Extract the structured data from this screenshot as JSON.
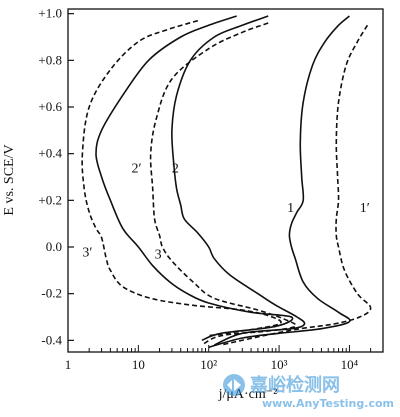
{
  "chart_data": {
    "type": "line",
    "title": "",
    "xlabel": "j/μA·cm⁻²",
    "ylabel": "E vs. SCE/V",
    "x_scale": "log",
    "xlim": [
      1,
      30000
    ],
    "ylim": [
      -0.45,
      1.02
    ],
    "x_ticks": [
      {
        "value": 1,
        "label": "1"
      },
      {
        "value": 10,
        "label": "10"
      },
      {
        "value": 100,
        "label": "10²"
      },
      {
        "value": 1000,
        "label": "10³"
      },
      {
        "value": 10000,
        "label": "10⁴"
      }
    ],
    "y_ticks": [
      {
        "value": 1.0,
        "label": "+1.0"
      },
      {
        "value": 0.8,
        "label": "+0.8"
      },
      {
        "value": 0.6,
        "label": "+0.6"
      },
      {
        "value": 0.4,
        "label": "+0.4"
      },
      {
        "value": 0.2,
        "label": "+0.2"
      },
      {
        "value": 0.0,
        "label": "0.0"
      },
      {
        "value": -0.2,
        "label": "-0.2"
      },
      {
        "value": -0.4,
        "label": "-0.4"
      }
    ],
    "grid": false,
    "series": [
      {
        "name": "1",
        "style": "solid",
        "label_pos": {
          "x": 1300,
          "y": 0.15
        },
        "points": [
          [
            10000,
            0.99
          ],
          [
            7000,
            0.95
          ],
          [
            4500,
            0.88
          ],
          [
            3000,
            0.78
          ],
          [
            2200,
            0.62
          ],
          [
            2000,
            0.45
          ],
          [
            2100,
            0.3
          ],
          [
            2200,
            0.2
          ],
          [
            1800,
            0.15
          ],
          [
            1500,
            0.1
          ],
          [
            1400,
            0.05
          ],
          [
            1500,
            0.0
          ],
          [
            1700,
            -0.05
          ],
          [
            2200,
            -0.15
          ],
          [
            3500,
            -0.22
          ],
          [
            7000,
            -0.28
          ],
          [
            10000,
            -0.32
          ],
          [
            4000,
            -0.35
          ],
          [
            1000,
            -0.37
          ],
          [
            300,
            -0.39
          ],
          [
            100,
            -0.43
          ]
        ]
      },
      {
        "name": "1′",
        "style": "dashed",
        "label_pos": {
          "x": 14000,
          "y": 0.15
        },
        "points": [
          [
            18000,
            0.95
          ],
          [
            13000,
            0.88
          ],
          [
            9000,
            0.78
          ],
          [
            7000,
            0.62
          ],
          [
            6500,
            0.45
          ],
          [
            6800,
            0.3
          ],
          [
            7000,
            0.2
          ],
          [
            6500,
            0.12
          ],
          [
            6500,
            0.05
          ],
          [
            7000,
            0.0
          ],
          [
            8500,
            -0.1
          ],
          [
            13000,
            -0.2
          ],
          [
            20000,
            -0.26
          ],
          [
            14000,
            -0.3
          ],
          [
            6000,
            -0.33
          ],
          [
            2000,
            -0.35
          ],
          [
            600,
            -0.38
          ],
          [
            150,
            -0.42
          ]
        ]
      },
      {
        "name": "2",
        "style": "solid",
        "label_pos": {
          "x": 30,
          "y": 0.32
        },
        "points": [
          [
            700,
            0.99
          ],
          [
            300,
            0.95
          ],
          [
            120,
            0.9
          ],
          [
            55,
            0.8
          ],
          [
            35,
            0.65
          ],
          [
            30,
            0.5
          ],
          [
            32,
            0.35
          ],
          [
            35,
            0.25
          ],
          [
            40,
            0.18
          ],
          [
            45,
            0.12
          ],
          [
            70,
            0.06
          ],
          [
            100,
            0.0
          ],
          [
            120,
            -0.05
          ],
          [
            200,
            -0.12
          ],
          [
            500,
            -0.2
          ],
          [
            900,
            -0.25
          ],
          [
            1800,
            -0.3
          ],
          [
            2300,
            -0.33
          ],
          [
            1500,
            -0.35
          ],
          [
            300,
            -0.37
          ],
          [
            120,
            -0.42
          ]
        ]
      },
      {
        "name": "2′",
        "style": "dashed",
        "label_pos": {
          "x": 8,
          "y": 0.32
        },
        "points": [
          [
            700,
            0.96
          ],
          [
            300,
            0.92
          ],
          [
            100,
            0.85
          ],
          [
            30,
            0.72
          ],
          [
            18,
            0.55
          ],
          [
            15,
            0.4
          ],
          [
            16,
            0.25
          ],
          [
            17,
            0.12
          ],
          [
            20,
            0.05
          ],
          [
            22,
            0.0
          ],
          [
            30,
            -0.06
          ],
          [
            60,
            -0.15
          ],
          [
            120,
            -0.22
          ],
          [
            500,
            -0.27
          ],
          [
            1200,
            -0.31
          ],
          [
            1700,
            -0.34
          ],
          [
            700,
            -0.36
          ],
          [
            150,
            -0.38
          ],
          [
            80,
            -0.42
          ]
        ]
      },
      {
        "name": "3",
        "style": "solid",
        "label_pos": {
          "x": 17,
          "y": -0.05
        },
        "points": [
          [
            250,
            0.99
          ],
          [
            100,
            0.95
          ],
          [
            40,
            0.9
          ],
          [
            14,
            0.8
          ],
          [
            6,
            0.65
          ],
          [
            3,
            0.5
          ],
          [
            2.5,
            0.4
          ],
          [
            3,
            0.3
          ],
          [
            4,
            0.2
          ],
          [
            6,
            0.08
          ],
          [
            10,
            0.0
          ],
          [
            16,
            -0.08
          ],
          [
            28,
            -0.15
          ],
          [
            50,
            -0.2
          ],
          [
            100,
            -0.24
          ],
          [
            400,
            -0.28
          ],
          [
            1500,
            -0.3
          ],
          [
            900,
            -0.34
          ],
          [
            150,
            -0.37
          ],
          [
            80,
            -0.4
          ]
        ]
      },
      {
        "name": "3′",
        "style": "dashed",
        "label_pos": {
          "x": 1.6,
          "y": -0.04
        },
        "points": [
          [
            70,
            0.97
          ],
          [
            25,
            0.93
          ],
          [
            10,
            0.88
          ],
          [
            4,
            0.76
          ],
          [
            2,
            0.6
          ],
          [
            1.6,
            0.4
          ],
          [
            1.7,
            0.25
          ],
          [
            2,
            0.15
          ],
          [
            2.5,
            0.08
          ],
          [
            3,
            0.04
          ],
          [
            3.5,
            -0.05
          ],
          [
            4,
            -0.1
          ],
          [
            6,
            -0.17
          ],
          [
            15,
            -0.22
          ],
          [
            60,
            -0.25
          ],
          [
            300,
            -0.27
          ],
          [
            800,
            -0.3
          ],
          [
            1000,
            -0.33
          ],
          [
            300,
            -0.36
          ],
          [
            100,
            -0.38
          ]
        ]
      }
    ]
  },
  "watermark": {
    "title": "嘉峪检测网",
    "url": "www.AnyTesting.com"
  }
}
